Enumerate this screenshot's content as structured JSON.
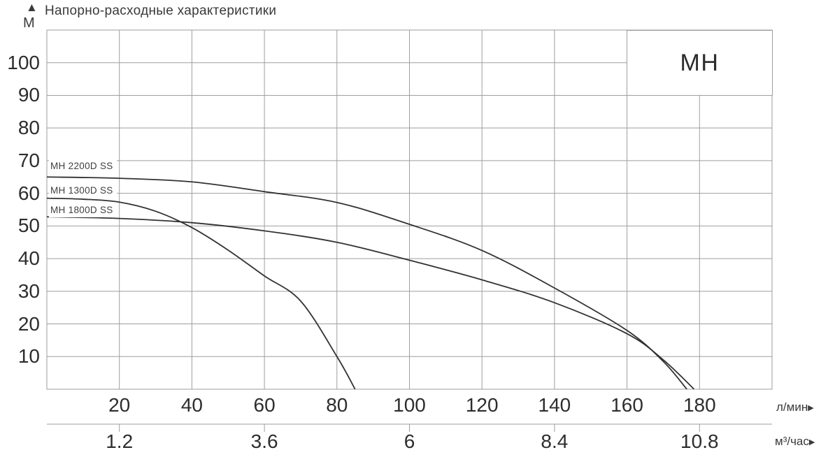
{
  "header": {
    "up_arrow_icon": "▲",
    "right_arrow_icon": "▶",
    "y_axis_unit": "М",
    "title": "Напорно-расходные характеристики"
  },
  "model_label": "МН",
  "chart_data": {
    "type": "line",
    "title": "Напорно-расходные характеристики",
    "grid": "on",
    "legend_position": "curve-start-labels top-left",
    "y_axis": {
      "unit": "М",
      "range": [
        0,
        110
      ],
      "gridline_step": 10,
      "tick_labels": [
        10,
        20,
        30,
        40,
        50,
        60,
        70,
        80,
        90,
        100
      ]
    },
    "x_axis_primary": {
      "unit": "л/мин",
      "range": [
        0,
        200
      ],
      "gridline_step": 20,
      "tick_labels": [
        20,
        40,
        60,
        80,
        100,
        120,
        140,
        160,
        180
      ]
    },
    "x_axis_secondary": {
      "unit": "м³/час",
      "tick_labels": [
        "1.2",
        "3.6",
        "6",
        "8.4",
        "10.8"
      ],
      "tick_positions_l_min": [
        20,
        60,
        100,
        140,
        180
      ]
    },
    "series": [
      {
        "name": "MH 2200D SS",
        "points_l_min_vs_m": [
          [
            0,
            65
          ],
          [
            20,
            64.6
          ],
          [
            40,
            63.5
          ],
          [
            60,
            60.5
          ],
          [
            80,
            57.2
          ],
          [
            100,
            50.5
          ],
          [
            120,
            42.5
          ],
          [
            140,
            31
          ],
          [
            160,
            18
          ],
          [
            170,
            8.5
          ],
          [
            176.5,
            0
          ]
        ]
      },
      {
        "name": "MH 1300D SS",
        "points_l_min_vs_m": [
          [
            0,
            58.5
          ],
          [
            10,
            58.2
          ],
          [
            20,
            57.3
          ],
          [
            30,
            54.5
          ],
          [
            40,
            49.5
          ],
          [
            50,
            42.6
          ],
          [
            60,
            34.7
          ],
          [
            70,
            27
          ],
          [
            80,
            10
          ],
          [
            85,
            0
          ]
        ]
      },
      {
        "name": "MH 1800D SS",
        "points_l_min_vs_m": [
          [
            0,
            52.8
          ],
          [
            20,
            52.3
          ],
          [
            40,
            51
          ],
          [
            60,
            48.5
          ],
          [
            80,
            45
          ],
          [
            100,
            39.5
          ],
          [
            120,
            33.5
          ],
          [
            140,
            26.5
          ],
          [
            160,
            17
          ],
          [
            170,
            9
          ],
          [
            178.5,
            0
          ]
        ]
      }
    ]
  },
  "colors": {
    "background": "#ffffff",
    "gridline": "#9e9e9e",
    "curve": "#323232",
    "text_dark": "#2d2d2d",
    "text_title": "#3a3a3a"
  }
}
